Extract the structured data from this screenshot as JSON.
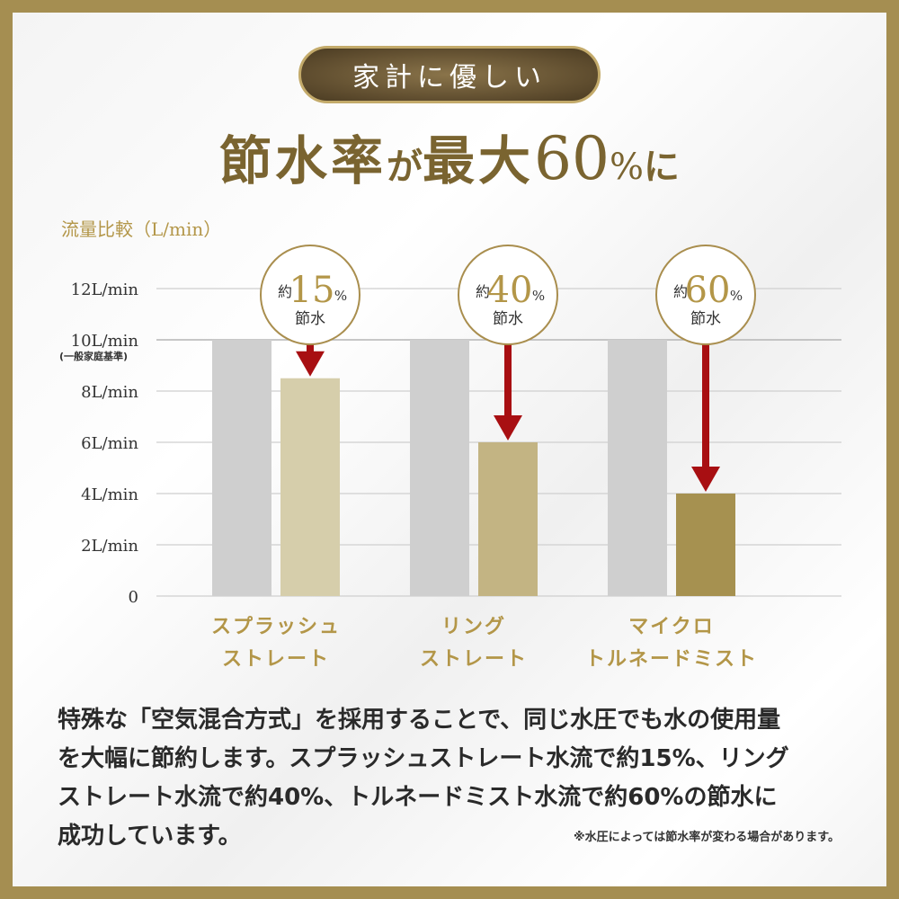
{
  "header": {
    "badge": "家計に優しい",
    "headline_a": "節水率",
    "headline_b": "が",
    "headline_c": "最大",
    "headline_num": "60",
    "headline_pct": "%",
    "headline_d": "に"
  },
  "chart_data": {
    "type": "bar",
    "title": "",
    "ylabel": "流量比較（L/min）",
    "ylim": [
      0,
      12
    ],
    "yticks": [
      {
        "value": 12,
        "label": "12L/min"
      },
      {
        "value": 10,
        "label": "10L/min",
        "sub": "(一般家庭基準)"
      },
      {
        "value": 8,
        "label": "8L/min"
      },
      {
        "value": 6,
        "label": "6L/min"
      },
      {
        "value": 4,
        "label": "4L/min"
      },
      {
        "value": 2,
        "label": "2L/min"
      },
      {
        "value": 0,
        "label": "0"
      }
    ],
    "categories": [
      {
        "lines": [
          "スプラッシュ",
          "ストレート"
        ],
        "baseline": 10,
        "value": 8.5,
        "badge_prefix": "約",
        "badge_num": "15",
        "badge_pct": "%",
        "badge_text": "節水",
        "color": "#d6ceab"
      },
      {
        "lines": [
          "リング",
          "ストレート"
        ],
        "baseline": 10,
        "value": 6,
        "badge_prefix": "約",
        "badge_num": "40",
        "badge_pct": "%",
        "badge_text": "節水",
        "color": "#c3b483"
      },
      {
        "lines": [
          "マイクロ",
          "トルネードミスト"
        ],
        "baseline": 10,
        "value": 4,
        "badge_prefix": "約",
        "badge_num": "60",
        "badge_pct": "%",
        "badge_text": "節水",
        "color": "#a69150"
      }
    ],
    "grid": true,
    "colors": {
      "baseline_bar": "#cfcfcf",
      "arrow": "#a80f12",
      "badge_border": "#a98e4e",
      "text_gold": "#b39648",
      "axis_text": "#333333"
    }
  },
  "description": {
    "lines": [
      "特殊な「空気混合方式」を採用することで、同じ水圧でも水の使用量",
      "を大幅に節約します。スプラッシュストレート水流で約15%、リング",
      "ストレート水流で約40%、トルネードミスト水流で約60%の節水に",
      "成功しています。"
    ],
    "note": "※水圧によっては節水率が変わる場合があります。"
  }
}
